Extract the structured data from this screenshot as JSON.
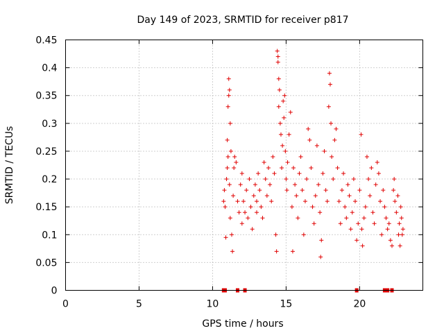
{
  "chart_data": {
    "type": "scatter",
    "title": "Day 149 of 2023, SRMTID for receiver p817",
    "xlabel": "GPS time / hours",
    "ylabel": "SRMTID / TECUs",
    "xlim": [
      0,
      24.3
    ],
    "ylim": [
      0,
      0.45
    ],
    "xticks": [
      0,
      5,
      10,
      15,
      20
    ],
    "xtick_labels": [
      "0",
      "5",
      "10",
      "15",
      "20"
    ],
    "yticks": [
      0,
      0.05,
      0.1,
      0.15,
      0.2,
      0.25,
      0.3,
      0.35,
      0.4,
      0.45
    ],
    "ytick_labels": [
      "0",
      "0.05",
      "0.1",
      "0.15",
      "0.2",
      "0.25",
      "0.3",
      "0.35",
      "0.4",
      "0.45"
    ],
    "grid": true,
    "marker": "+",
    "color": "#e00000",
    "zero_points_x": [
      10.75,
      10.85,
      11.7,
      12.2,
      19.8,
      21.7,
      21.9,
      22.2
    ],
    "series": [
      {
        "name": "SRMTID",
        "points": [
          [
            10.75,
            0.16
          ],
          [
            10.8,
            0.18
          ],
          [
            10.85,
            0.15
          ],
          [
            10.9,
            0.095
          ],
          [
            10.95,
            0.2
          ],
          [
            11.0,
            0.22
          ],
          [
            11.0,
            0.27
          ],
          [
            11.05,
            0.24
          ],
          [
            11.05,
            0.33
          ],
          [
            11.1,
            0.38
          ],
          [
            11.1,
            0.35
          ],
          [
            11.15,
            0.36
          ],
          [
            11.15,
            0.19
          ],
          [
            11.2,
            0.3
          ],
          [
            11.2,
            0.13
          ],
          [
            11.25,
            0.25
          ],
          [
            11.3,
            0.1
          ],
          [
            11.35,
            0.07
          ],
          [
            11.4,
            0.17
          ],
          [
            11.45,
            0.22
          ],
          [
            11.5,
            0.24
          ],
          [
            11.6,
            0.23
          ],
          [
            11.7,
            0.16
          ],
          [
            11.8,
            0.14
          ],
          [
            11.9,
            0.19
          ],
          [
            12.0,
            0.21
          ],
          [
            12.0,
            0.12
          ],
          [
            12.1,
            0.16
          ],
          [
            12.2,
            0.14
          ],
          [
            12.3,
            0.18
          ],
          [
            12.4,
            0.13
          ],
          [
            12.5,
            0.2
          ],
          [
            12.6,
            0.15
          ],
          [
            12.7,
            0.11
          ],
          [
            12.8,
            0.17
          ],
          [
            12.9,
            0.19
          ],
          [
            13.0,
            0.16
          ],
          [
            13.0,
            0.14
          ],
          [
            13.1,
            0.21
          ],
          [
            13.2,
            0.18
          ],
          [
            13.3,
            0.15
          ],
          [
            13.4,
            0.13
          ],
          [
            13.5,
            0.23
          ],
          [
            13.6,
            0.2
          ],
          [
            13.7,
            0.17
          ],
          [
            13.8,
            0.22
          ],
          [
            13.9,
            0.19
          ],
          [
            14.0,
            0.16
          ],
          [
            14.1,
            0.24
          ],
          [
            14.2,
            0.21
          ],
          [
            14.3,
            0.1
          ],
          [
            14.35,
            0.07
          ],
          [
            14.4,
            0.43
          ],
          [
            14.45,
            0.42
          ],
          [
            14.45,
            0.41
          ],
          [
            14.5,
            0.38
          ],
          [
            14.5,
            0.33
          ],
          [
            14.55,
            0.36
          ],
          [
            14.6,
            0.3
          ],
          [
            14.65,
            0.28
          ],
          [
            14.7,
            0.22
          ],
          [
            14.75,
            0.26
          ],
          [
            14.8,
            0.34
          ],
          [
            14.85,
            0.31
          ],
          [
            14.9,
            0.35
          ],
          [
            14.95,
            0.25
          ],
          [
            15.0,
            0.2
          ],
          [
            15.05,
            0.18
          ],
          [
            15.1,
            0.23
          ],
          [
            15.2,
            0.28
          ],
          [
            15.3,
            0.32
          ],
          [
            15.4,
            0.15
          ],
          [
            15.45,
            0.07
          ],
          [
            15.5,
            0.22
          ],
          [
            15.6,
            0.19
          ],
          [
            15.7,
            0.17
          ],
          [
            15.8,
            0.13
          ],
          [
            15.9,
            0.21
          ],
          [
            16.0,
            0.24
          ],
          [
            16.1,
            0.18
          ],
          [
            16.2,
            0.1
          ],
          [
            16.3,
            0.16
          ],
          [
            16.4,
            0.2
          ],
          [
            16.5,
            0.29
          ],
          [
            16.6,
            0.27
          ],
          [
            16.7,
            0.22
          ],
          [
            16.8,
            0.15
          ],
          [
            16.9,
            0.12
          ],
          [
            17.0,
            0.17
          ],
          [
            17.1,
            0.26
          ],
          [
            17.2,
            0.19
          ],
          [
            17.3,
            0.14
          ],
          [
            17.35,
            0.06
          ],
          [
            17.4,
            0.09
          ],
          [
            17.5,
            0.21
          ],
          [
            17.6,
            0.25
          ],
          [
            17.7,
            0.18
          ],
          [
            17.8,
            0.16
          ],
          [
            17.9,
            0.33
          ],
          [
            17.95,
            0.39
          ],
          [
            18.0,
            0.37
          ],
          [
            18.05,
            0.3
          ],
          [
            18.1,
            0.24
          ],
          [
            18.2,
            0.2
          ],
          [
            18.3,
            0.27
          ],
          [
            18.4,
            0.29
          ],
          [
            18.5,
            0.22
          ],
          [
            18.6,
            0.16
          ],
          [
            18.7,
            0.12
          ],
          [
            18.8,
            0.18
          ],
          [
            18.9,
            0.21
          ],
          [
            19.0,
            0.15
          ],
          [
            19.1,
            0.13
          ],
          [
            19.2,
            0.19
          ],
          [
            19.3,
            0.17
          ],
          [
            19.4,
            0.11
          ],
          [
            19.5,
            0.14
          ],
          [
            19.6,
            0.2
          ],
          [
            19.7,
            0.16
          ],
          [
            19.8,
            0.09
          ],
          [
            19.9,
            0.12
          ],
          [
            20.0,
            0.18
          ],
          [
            20.1,
            0.28
          ],
          [
            20.15,
            0.11
          ],
          [
            20.2,
            0.08
          ],
          [
            20.3,
            0.13
          ],
          [
            20.4,
            0.15
          ],
          [
            20.5,
            0.24
          ],
          [
            20.6,
            0.2
          ],
          [
            20.7,
            0.17
          ],
          [
            20.8,
            0.22
          ],
          [
            20.9,
            0.14
          ],
          [
            21.0,
            0.12
          ],
          [
            21.1,
            0.19
          ],
          [
            21.2,
            0.23
          ],
          [
            21.3,
            0.21
          ],
          [
            21.4,
            0.16
          ],
          [
            21.5,
            0.1
          ],
          [
            21.6,
            0.18
          ],
          [
            21.7,
            0.15
          ],
          [
            21.8,
            0.13
          ],
          [
            21.9,
            0.11
          ],
          [
            22.0,
            0.12
          ],
          [
            22.1,
            0.09
          ],
          [
            22.2,
            0.08
          ],
          [
            22.3,
            0.18
          ],
          [
            22.35,
            0.2
          ],
          [
            22.4,
            0.16
          ],
          [
            22.5,
            0.14
          ],
          [
            22.6,
            0.17
          ],
          [
            22.65,
            0.1
          ],
          [
            22.7,
            0.12
          ],
          [
            22.75,
            0.08
          ],
          [
            22.8,
            0.15
          ],
          [
            22.85,
            0.13
          ],
          [
            22.9,
            0.1
          ],
          [
            22.95,
            0.11
          ]
        ]
      }
    ]
  }
}
